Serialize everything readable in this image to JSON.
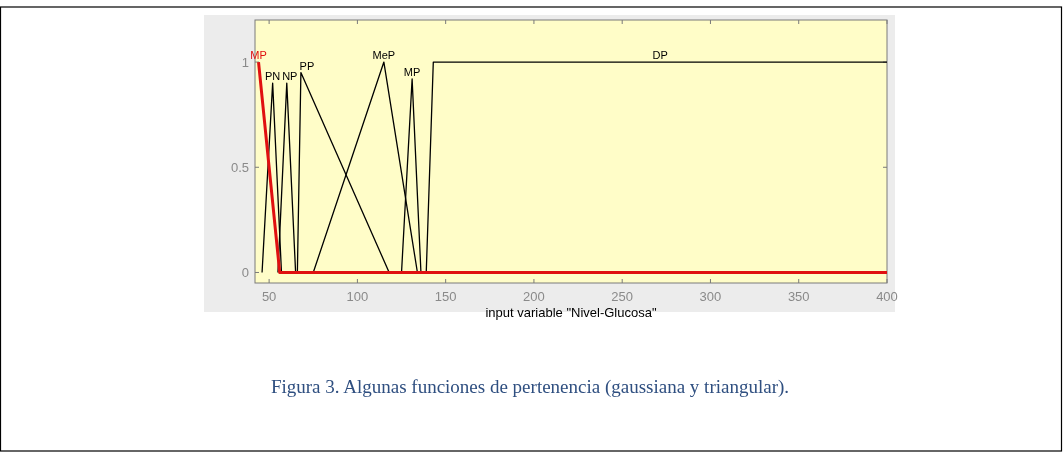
{
  "chart_data": {
    "type": "line",
    "xlabel": "input variable \"Nivel-Glucosa\"",
    "xlim": [
      42,
      400
    ],
    "xticks": [
      50,
      100,
      150,
      200,
      250,
      300,
      350,
      400
    ],
    "ylim": [
      -0.05,
      1.2
    ],
    "yticks": [
      0,
      0.5,
      1
    ],
    "grid": false,
    "legend": false,
    "marker": "none",
    "line_style": "solid",
    "annotations": [
      "Figura 3.  Algunas funciones de pertenencia (gaussiana y triangular)."
    ],
    "series": [
      {
        "name": "MP",
        "color": "#e01010",
        "x": [
          44,
          56,
          400
        ],
        "values": [
          1,
          0,
          0
        ]
      },
      {
        "name": "PN",
        "color": "#000000",
        "x": [
          46,
          52,
          57
        ],
        "values": [
          0,
          0.9,
          0
        ]
      },
      {
        "name": "NP",
        "color": "#000000",
        "x": [
          55,
          60,
          65
        ],
        "values": [
          0,
          0.9,
          0
        ]
      },
      {
        "name": "PP",
        "color": "#000000",
        "x": [
          66,
          68,
          118
        ],
        "values": [
          0,
          0.95,
          0
        ]
      },
      {
        "name": "MeP",
        "color": "#000000",
        "x": [
          75,
          115,
          134
        ],
        "values": [
          0,
          1,
          0
        ]
      },
      {
        "name": "MP",
        "color": "#000000",
        "x": [
          125,
          131,
          136
        ],
        "values": [
          0,
          0.92,
          0
        ]
      },
      {
        "name": "DP",
        "color": "#000000",
        "x": [
          139,
          143,
          400
        ],
        "values": [
          0,
          1,
          1
        ]
      }
    ]
  }
}
